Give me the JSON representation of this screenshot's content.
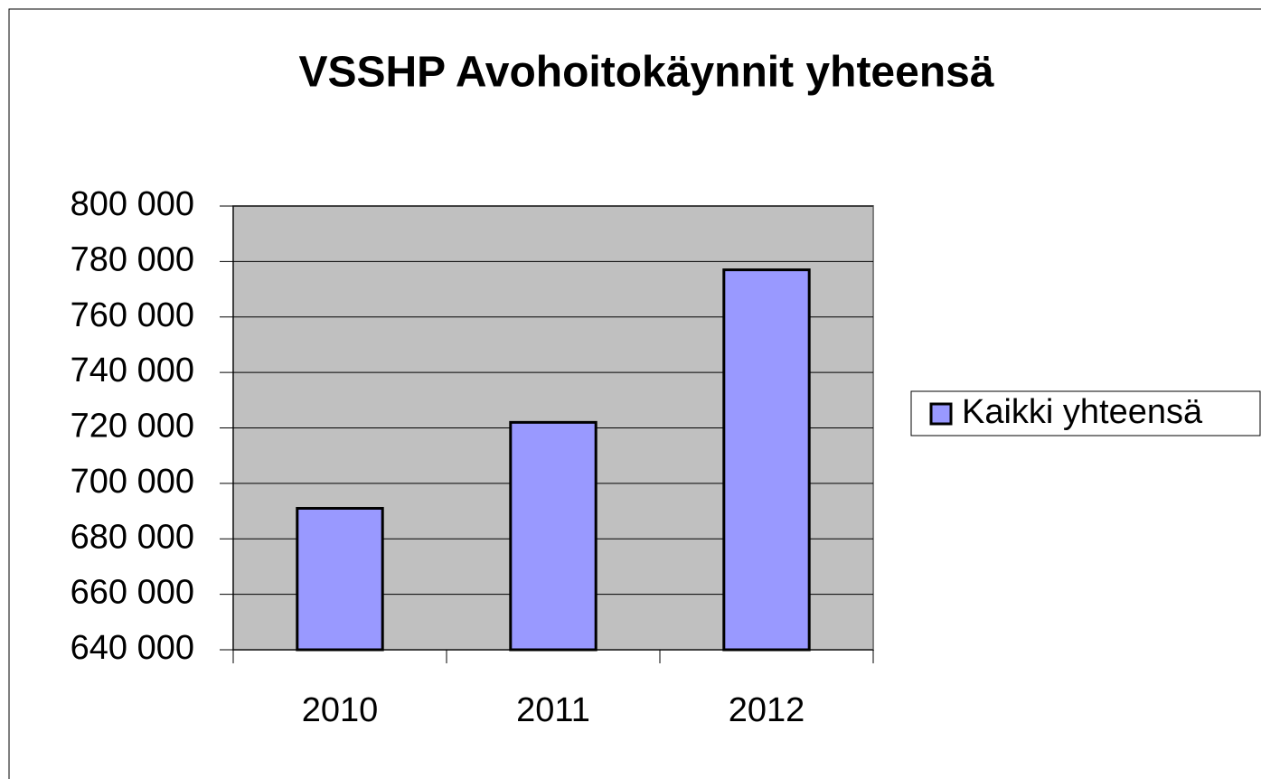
{
  "chart_data": {
    "type": "bar",
    "title": "VSSHP Avohoitokäynnit yhteensä",
    "categories": [
      "2010",
      "2011",
      "2012"
    ],
    "series": [
      {
        "name": "Kaikki yhteensä",
        "color": "#9999ff",
        "values": [
          691000,
          722000,
          777000
        ]
      }
    ],
    "ylim": [
      640000,
      800000
    ],
    "yticks": [
      {
        "value": 640000,
        "label": "640 000"
      },
      {
        "value": 660000,
        "label": "660 000"
      },
      {
        "value": 680000,
        "label": "680 000"
      },
      {
        "value": 700000,
        "label": "700 000"
      },
      {
        "value": 720000,
        "label": "720 000"
      },
      {
        "value": 740000,
        "label": "740 000"
      },
      {
        "value": 760000,
        "label": "760 000"
      },
      {
        "value": 780000,
        "label": "780 000"
      },
      {
        "value": 800000,
        "label": "800 000"
      }
    ],
    "grid": true,
    "legend": "right",
    "plot_background": "#c0c0c0"
  }
}
